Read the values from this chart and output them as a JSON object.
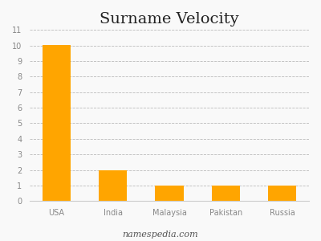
{
  "title": "Surname Velocity",
  "categories": [
    "USA",
    "India",
    "Malaysia",
    "Pakistan",
    "Russia"
  ],
  "values": [
    10.05,
    2.0,
    1.0,
    1.0,
    1.0
  ],
  "bar_color": "#FFA500",
  "ylim": [
    0,
    11
  ],
  "yticks": [
    0,
    1,
    2,
    3,
    4,
    5,
    6,
    7,
    8,
    9,
    10,
    11
  ],
  "grid_color": "#bbbbbb",
  "background_color": "#f9f9f9",
  "footer_text": "namespedia.com",
  "title_fontsize": 14,
  "tick_fontsize": 7,
  "footer_fontsize": 8
}
